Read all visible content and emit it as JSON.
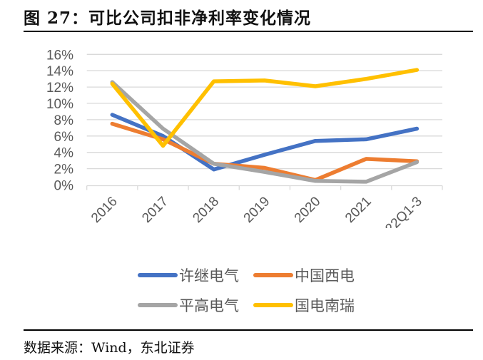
{
  "header": {
    "title": "图 27：可比公司扣非净利率变化情况"
  },
  "footer": {
    "source": "数据来源：Wind，东北证券"
  },
  "chart_data": {
    "type": "line",
    "title": "图 27：可比公司扣非净利率变化情况",
    "xlabel": "",
    "ylabel": "",
    "categories": [
      "2016",
      "2017",
      "2018",
      "2019",
      "2020",
      "2021",
      "22Q1-3"
    ],
    "y_ticks": [
      "0%",
      "2%",
      "4%",
      "6%",
      "8%",
      "10%",
      "12%",
      "14%",
      "16%"
    ],
    "ylim": [
      0,
      16
    ],
    "grid": true,
    "legend_position": "bottom",
    "series": [
      {
        "name": "许继电气",
        "color": "#4472C4",
        "values": [
          8.6,
          6.0,
          1.9,
          3.7,
          5.4,
          5.6,
          6.9
        ]
      },
      {
        "name": "中国西电",
        "color": "#ED7D31",
        "values": [
          7.5,
          5.6,
          2.6,
          2.1,
          0.6,
          3.2,
          2.9
        ]
      },
      {
        "name": "平高电气",
        "color": "#A5A5A5",
        "values": [
          12.6,
          6.9,
          2.6,
          1.6,
          0.5,
          0.4,
          2.8
        ]
      },
      {
        "name": "国电南瑞",
        "color": "#FFC000",
        "values": [
          12.4,
          4.8,
          12.7,
          12.8,
          12.1,
          13.0,
          14.1
        ]
      }
    ]
  }
}
